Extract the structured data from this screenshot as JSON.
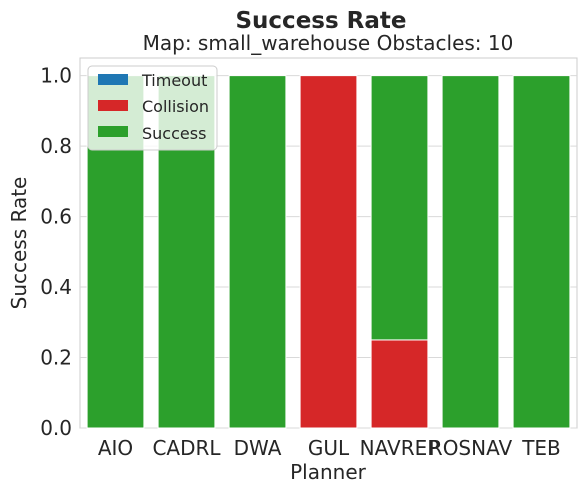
{
  "chart_data": {
    "type": "bar",
    "stacked": true,
    "title": "Success Rate",
    "subtitle": "Map: small_warehouse Obstacles: 10",
    "xlabel": "Planner",
    "ylabel": "Success Rate",
    "categories": [
      "AIO",
      "CADRL",
      "DWA",
      "GUL",
      "NAVREP",
      "ROSNAV",
      "TEB"
    ],
    "ylim": [
      0,
      1.05
    ],
    "yticks": [
      "0.0",
      "0.2",
      "0.4",
      "0.6",
      "0.8",
      "1.0"
    ],
    "grid": true,
    "legend_position": "top-left",
    "series": [
      {
        "name": "Timeout",
        "color": "#1f77b4",
        "values": [
          0,
          0,
          0,
          0,
          0,
          0,
          0
        ]
      },
      {
        "name": "Collision",
        "color": "#d62728",
        "values": [
          0,
          0,
          0,
          1.0,
          0.25,
          0,
          0
        ]
      },
      {
        "name": "Success",
        "color": "#2ca02c",
        "values": [
          1.0,
          1.0,
          1.0,
          0,
          0.75,
          1.0,
          1.0
        ]
      }
    ]
  }
}
